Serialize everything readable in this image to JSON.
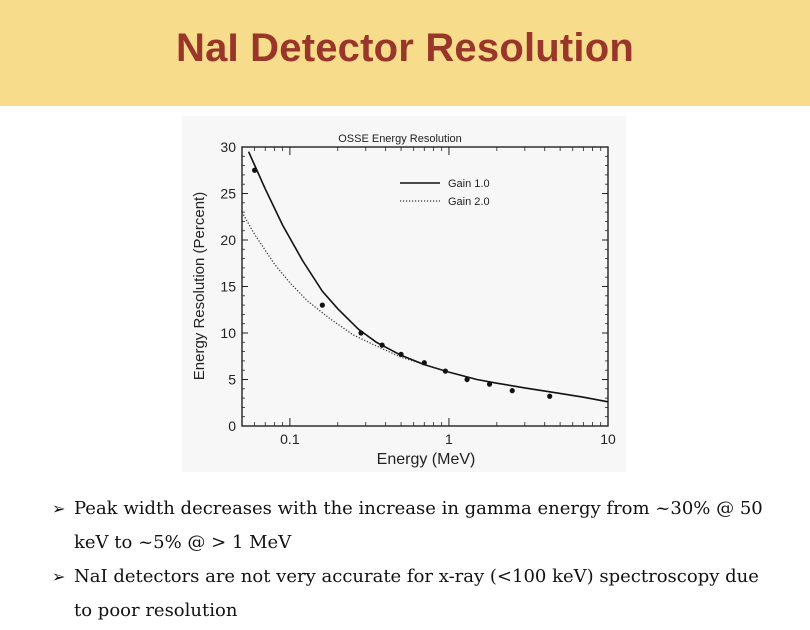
{
  "slide": {
    "title": "NaI Detector Resolution",
    "bullets": [
      "Peak width decreases with the increase in gamma energy from ~30% @ 50 keV to ~5% @ > 1 MeV",
      "NaI detectors are not very accurate for x-ray (<100 keV) spectroscopy due to poor resolution"
    ],
    "bullet_icon": "arrow-bullet-icon"
  },
  "chart_data": {
    "type": "line",
    "title": "OSSE Energy Resolution",
    "xlabel": "Energy (MeV)",
    "ylabel": "Energy Resolution (Percent)",
    "x_scale": "log",
    "xlim": [
      0.05,
      10
    ],
    "ylim": [
      0,
      30
    ],
    "x_ticks": [
      0.1,
      1,
      10
    ],
    "x_tick_labels": [
      "0.1",
      "1",
      "10"
    ],
    "y_ticks": [
      0,
      5,
      10,
      15,
      20,
      25,
      30
    ],
    "y_tick_labels": [
      "0",
      "5",
      "10",
      "15",
      "20",
      "25",
      "30"
    ],
    "legend_position": "top-right",
    "series": [
      {
        "name": "Gain 1.0",
        "style": "solid",
        "color": "#111111",
        "x": [
          0.055,
          0.07,
          0.09,
          0.12,
          0.16,
          0.2,
          0.27,
          0.35,
          0.5,
          0.7,
          1.0,
          1.5,
          2.0,
          3.0,
          5.0,
          7.0,
          10.0
        ],
        "y": [
          29.5,
          25.5,
          21.6,
          17.8,
          14.5,
          12.6,
          10.4,
          9.0,
          7.6,
          6.6,
          5.8,
          5.0,
          4.6,
          4.1,
          3.5,
          3.1,
          2.6
        ]
      },
      {
        "name": "Gain 2.0",
        "style": "dotted",
        "color": "#333333",
        "x": [
          0.05,
          0.06,
          0.08,
          0.1,
          0.13,
          0.18,
          0.25,
          0.35,
          0.5,
          0.7,
          1.0
        ],
        "y": [
          23.0,
          20.6,
          17.4,
          15.4,
          13.4,
          11.5,
          9.8,
          8.6,
          7.4,
          6.6,
          5.8
        ]
      }
    ],
    "points": {
      "x": [
        0.06,
        0.16,
        0.28,
        0.38,
        0.5,
        0.7,
        0.95,
        1.3,
        1.8,
        2.5,
        4.3
      ],
      "y": [
        27.5,
        13.0,
        10.0,
        8.7,
        7.7,
        6.8,
        5.9,
        5.0,
        4.5,
        3.8,
        3.2
      ]
    }
  }
}
